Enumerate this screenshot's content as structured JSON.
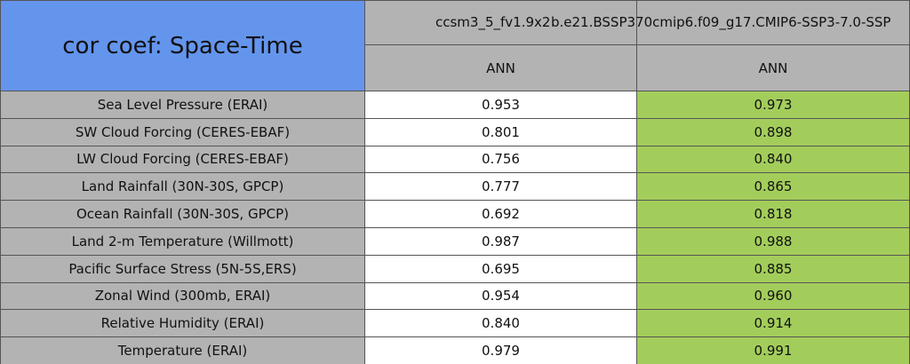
{
  "header": {
    "title": "cor coef: Space-Time",
    "columns": [
      {
        "model": "ccsm3_5_fv1.9x2",
        "season": "ANN"
      },
      {
        "model": "b.e21.BSSP370cmip6.f09_g17.CMIP6-SSP3-7.0-SSP",
        "season": "ANN"
      }
    ]
  },
  "table": {
    "rows": [
      [
        "Sea Level Pressure (ERAI)",
        "0.953",
        "0.973"
      ],
      [
        "SW Cloud Forcing (CERES-EBAF)",
        "0.801",
        "0.898"
      ],
      [
        "LW Cloud Forcing (CERES-EBAF)",
        "0.756",
        "0.840"
      ],
      [
        "Land Rainfall (30N-30S, GPCP)",
        "0.777",
        "0.865"
      ],
      [
        "Ocean Rainfall (30N-30S, GPCP)",
        "0.692",
        "0.818"
      ],
      [
        "Land 2-m Temperature (Willmott)",
        "0.987",
        "0.988"
      ],
      [
        "Pacific Surface Stress (5N-5S,ERS)",
        "0.695",
        "0.885"
      ],
      [
        "Zonal Wind (300mb, ERAI)",
        "0.954",
        "0.960"
      ],
      [
        "Relative Humidity (ERAI)",
        "0.840",
        "0.914"
      ],
      [
        "Temperature (ERAI)",
        "0.979",
        "0.991"
      ]
    ]
  }
}
